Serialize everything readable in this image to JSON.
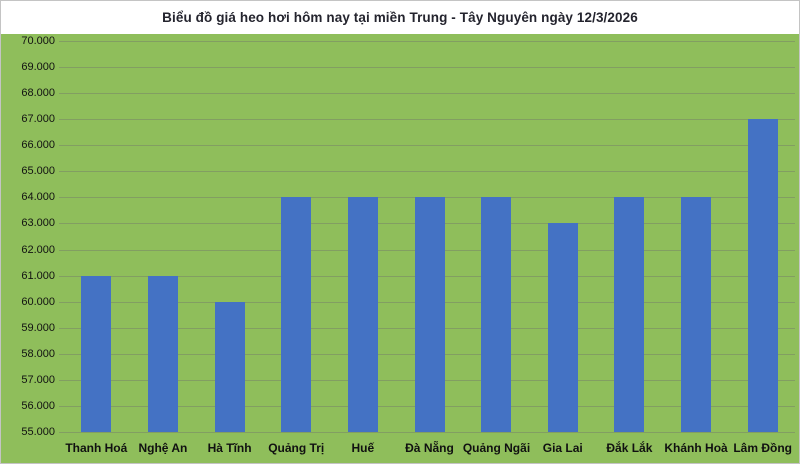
{
  "chart": {
    "title": "Biểu đồ giá heo hơi hôm nay tại miền Trung - Tây Nguyên ngày 12/3/2026"
  },
  "chart_data": {
    "type": "bar",
    "title": "Biểu đồ giá heo hơi hôm nay tại miền Trung - Tây Nguyên ngày 12/3/2026",
    "categories": [
      "Thanh Hoá",
      "Nghệ An",
      "Hà Tĩnh",
      "Quảng Trị",
      "Huế",
      "Đà Nẵng",
      "Quảng Ngãi",
      "Gia Lai",
      "Đắk Lắk",
      "Khánh Hoà",
      "Lâm Đồng"
    ],
    "values": [
      61000,
      61000,
      60000,
      64000,
      64000,
      64000,
      64000,
      63000,
      64000,
      64000,
      67000
    ],
    "xlabel": "",
    "ylabel": "",
    "ylim": [
      55000,
      70000
    ],
    "ytick_step": 1000,
    "ytick_values": [
      55000,
      56000,
      57000,
      58000,
      59000,
      60000,
      61000,
      62000,
      63000,
      64000,
      65000,
      66000,
      67000,
      68000,
      69000,
      70000
    ],
    "ytick_labels": [
      "55.000",
      "56.000",
      "57.000",
      "58.000",
      "59.000",
      "60.000",
      "61.000",
      "62.000",
      "63.000",
      "64.000",
      "65.000",
      "66.000",
      "67.000",
      "68.000",
      "69.000",
      "70.000"
    ],
    "grid": true,
    "legend": "none",
    "bar_color": "#4472C4",
    "background_color": "#8FBE5B",
    "title_band_color": "#FFFFFF",
    "text_color": "#111111"
  }
}
